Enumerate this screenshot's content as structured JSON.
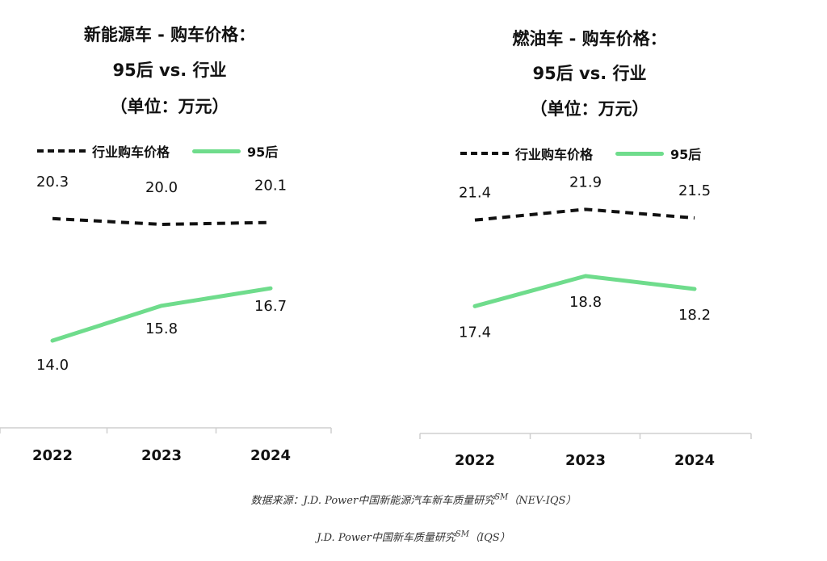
{
  "chart_data": [
    {
      "type": "line",
      "title": [
        "新能源车 - 购车价格：",
        "95后 vs. 行业",
        "（单位：万元）"
      ],
      "categories": [
        "2022",
        "2023",
        "2024"
      ],
      "series": [
        {
          "name": "行业购车价格",
          "values": [
            20.3,
            20.0,
            20.1
          ],
          "labels": [
            "20.3",
            "20.0",
            "20.1"
          ],
          "style": "dashed",
          "color": "#111111"
        },
        {
          "name": "95后",
          "values": [
            14.0,
            15.8,
            16.7
          ],
          "labels": [
            "14.0",
            "15.8",
            "16.7"
          ],
          "style": "solid",
          "color": "#6fdc8c"
        }
      ],
      "ylim": [
        12,
        22
      ],
      "grid": false,
      "legend": "top"
    },
    {
      "type": "line",
      "title": [
        "燃油车 - 购车价格：",
        "95后 vs. 行业",
        "（单位：万元）"
      ],
      "categories": [
        "2022",
        "2023",
        "2024"
      ],
      "series": [
        {
          "name": "行业购车价格",
          "values": [
            21.4,
            21.9,
            21.5
          ],
          "labels": [
            "21.4",
            "21.9",
            "21.5"
          ],
          "style": "dashed",
          "color": "#111111"
        },
        {
          "name": "95后",
          "values": [
            17.4,
            18.8,
            18.2
          ],
          "labels": [
            "17.4",
            "18.8",
            "18.2"
          ],
          "style": "solid",
          "color": "#6fdc8c"
        }
      ],
      "ylim": [
        14,
        23
      ],
      "grid": false,
      "legend": "top"
    }
  ],
  "source": {
    "line1": "数据来源：J.D. Power中国新能源汽车新车质量研究",
    "line1_sup": "SM",
    "line1_tail": "（NEV-IQS）",
    "line2": "J.D. Power中国新车质量研究",
    "line2_sup": "SM",
    "line2_tail": "（IQS）"
  }
}
